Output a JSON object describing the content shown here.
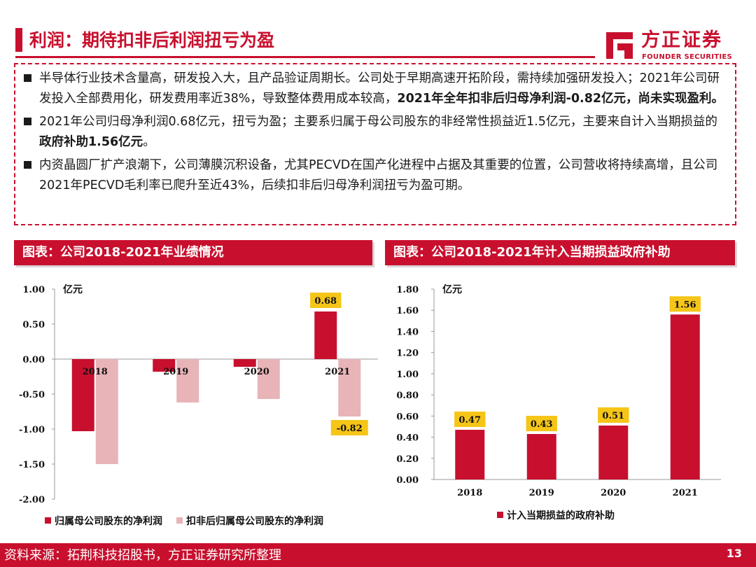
{
  "header": {
    "title": "利润：期待扣非后利润扭亏为盈",
    "logo_cn": "方正证券",
    "logo_en": "FOUNDER SECURITIES",
    "accent_color": "#c8102e"
  },
  "bullets": [
    {
      "text": "半导体行业技术含量高，研发投入大，且产品验证周期长。公司处于早期高速开拓阶段，需持续加强研发投入；2021年公司研发投入全部费用化，研发费用率近38%，导致整体费用成本较高，",
      "bold": "2021年全年扣非后归母净利润-0.82亿元，尚未实现盈利。",
      "tail": ""
    },
    {
      "text": "2021年公司归母净利润0.68亿元，扭亏为盈；主要系归属于母公司股东的非经常性损益近1.5亿元，主要来自计入当期损益的",
      "bold": "政府补助1.56亿元",
      "tail": "。"
    },
    {
      "text": "内资晶圆厂扩产浪潮下，公司薄膜沉积设备，尤其PECVD在国产化进程中占据及其重要的位置，公司营收将持续高增，且公司2021年PECVD毛利率已爬升至近43%，后续扣非后归母净利润扭亏为盈可期。",
      "bold": "",
      "tail": ""
    }
  ],
  "panels": {
    "left_title": "图表：公司2018-2021年业绩情况",
    "right_title": "图表：公司2018-2021年计入当期损益政府补助"
  },
  "chart_data": [
    {
      "type": "bar",
      "title": "图表：公司2018-2021年业绩情况",
      "unit": "亿元",
      "categories": [
        "2018",
        "2019",
        "2020",
        "2021"
      ],
      "series": [
        {
          "name": "归属母公司股东的净利润",
          "color": "#c8102e",
          "values": [
            -1.03,
            -0.18,
            -0.11,
            0.68
          ]
        },
        {
          "name": "扣非后归属母公司股东的净利润",
          "color": "#e8b4b8",
          "values": [
            -1.5,
            -0.62,
            -0.57,
            -0.82
          ]
        }
      ],
      "data_labels": [
        {
          "text": "0.68",
          "series": 0,
          "index": 3
        },
        {
          "text": "-0.82",
          "series": 1,
          "index": 3
        }
      ],
      "ylim": [
        -2.0,
        1.0
      ],
      "yticks": [
        "1.00",
        "0.50",
        "0.00",
        "-0.50",
        "-1.00",
        "-1.50",
        "-2.00"
      ],
      "legend": "bottom",
      "grid": false
    },
    {
      "type": "bar",
      "title": "图表：公司2018-2021年计入当期损益政府补助",
      "unit": "亿元",
      "categories": [
        "2018",
        "2019",
        "2020",
        "2021"
      ],
      "series": [
        {
          "name": "计入当期损益的政府补助",
          "color": "#c8102e",
          "values": [
            0.47,
            0.43,
            0.51,
            1.56
          ]
        }
      ],
      "data_labels": [
        "0.47",
        "0.43",
        "0.51",
        "1.56"
      ],
      "ylim": [
        0.0,
        1.8
      ],
      "yticks": [
        "1.80",
        "1.60",
        "1.40",
        "1.20",
        "1.00",
        "0.80",
        "0.60",
        "0.40",
        "0.20",
        "0.00"
      ],
      "legend": "bottom",
      "grid": false
    }
  ],
  "label_box_color": "#f5c518",
  "footer": {
    "source": "资料来源：拓荆科技招股书，方正证券研究所整理",
    "page": "13"
  }
}
